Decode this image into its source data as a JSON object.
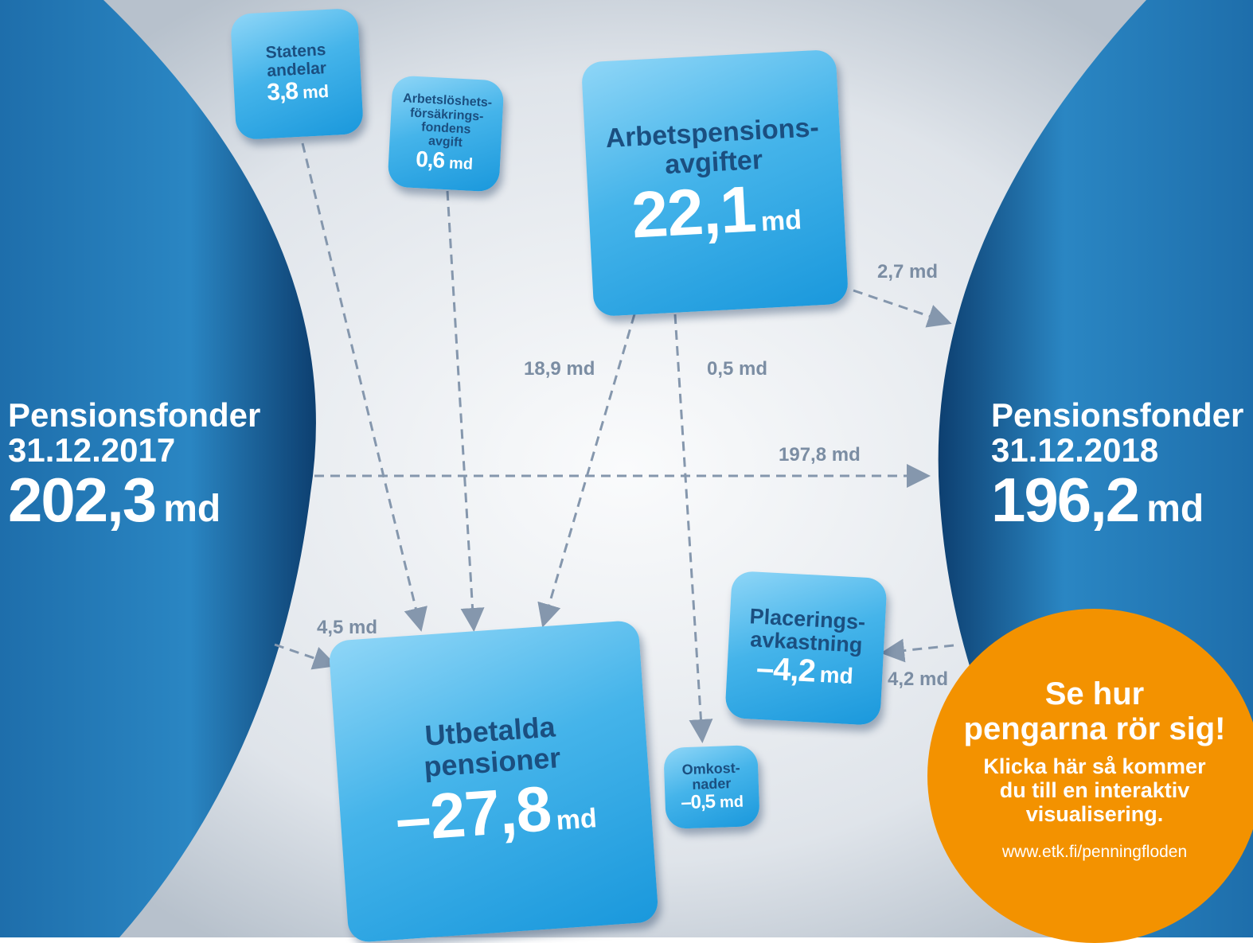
{
  "funds": {
    "start": {
      "label": "Pensionsfonder",
      "date": "31.12.2017",
      "value": "202,3",
      "unit": "md"
    },
    "end": {
      "label": "Pensionsfonder",
      "date": "31.12.2018",
      "value": "196,2",
      "unit": "md"
    }
  },
  "nodes": {
    "statens": {
      "lines": [
        "Statens",
        "andelar"
      ],
      "value": "3,8",
      "unit": "md"
    },
    "arbetsloshet": {
      "lines": [
        "Arbetslöshets-",
        "försäkrings-",
        "fondens",
        "avgift"
      ],
      "value": "0,6",
      "unit": "md"
    },
    "arbetspension": {
      "lines": [
        "Arbetspensions-",
        "avgifter"
      ],
      "value": "22,1",
      "unit": "md"
    },
    "utbetalda": {
      "lines": [
        "Utbetalda",
        "pensioner"
      ],
      "value": "–27,8",
      "unit": "md"
    },
    "omkostnader": {
      "lines": [
        "Omkost-",
        "nader"
      ],
      "value": "–0,5",
      "unit": "md"
    },
    "placering": {
      "lines": [
        "Placerings-",
        "avkastning"
      ],
      "value": "–4,2",
      "unit": "md"
    }
  },
  "flows": [
    "2,7 md",
    "18,9 md",
    "0,5 md",
    "197,8 md",
    "4,5 md",
    "4,2 md"
  ],
  "callout": {
    "title": [
      "Se hur",
      "pengarna rör sig!"
    ],
    "text": [
      "Klicka här så kommer",
      "du till en interaktiv",
      "visualisering."
    ],
    "url": "www.etk.fi/penningfloden"
  }
}
